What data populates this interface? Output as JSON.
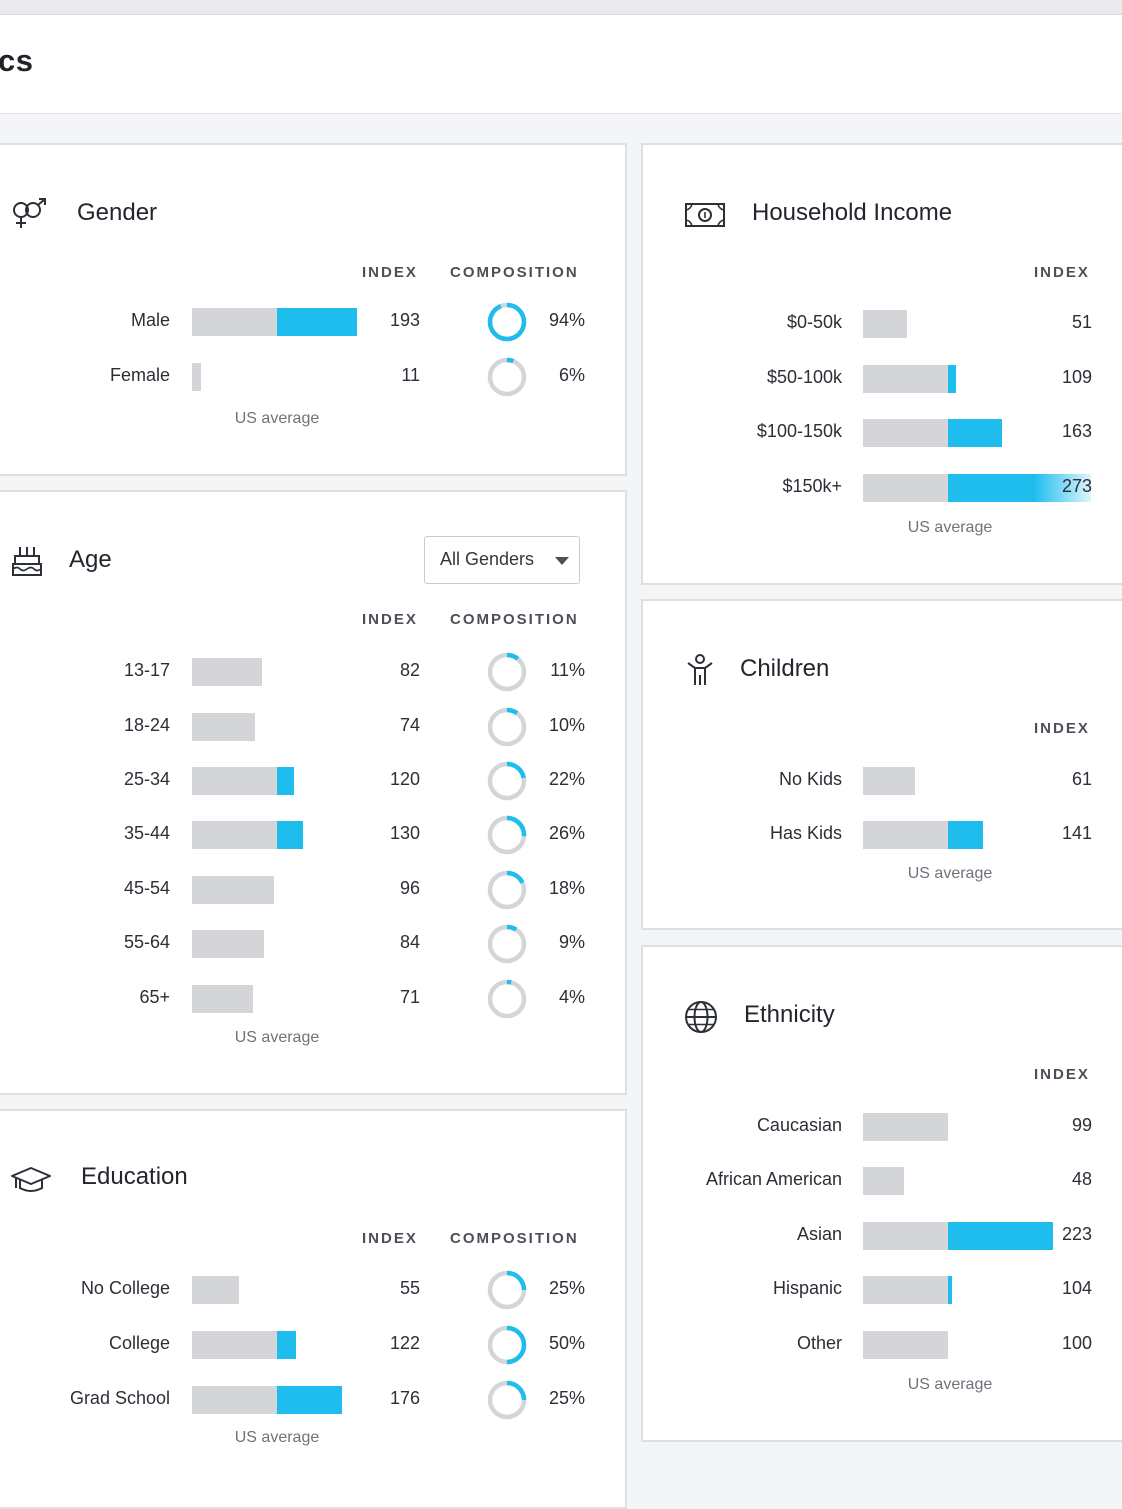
{
  "page": {
    "title": "cs"
  },
  "gender": {
    "title": "Gender",
    "index_header": "INDEX",
    "composition_header": "COMPOSITION",
    "us_average": "US average",
    "rows": [
      {
        "label": "Male",
        "index": "193",
        "composition": "94%",
        "index_value": 193,
        "composition_value": 94
      },
      {
        "label": "Female",
        "index": "11",
        "composition": "6%",
        "index_value": 11,
        "composition_value": 6
      }
    ]
  },
  "age": {
    "title": "Age",
    "filter": {
      "selected": "All Genders"
    },
    "index_header": "INDEX",
    "composition_header": "COMPOSITION",
    "us_average": "US average",
    "rows": [
      {
        "label": "13-17",
        "index": "82",
        "composition": "11%",
        "index_value": 82,
        "composition_value": 11
      },
      {
        "label": "18-24",
        "index": "74",
        "composition": "10%",
        "index_value": 74,
        "composition_value": 10
      },
      {
        "label": "25-34",
        "index": "120",
        "composition": "22%",
        "index_value": 120,
        "composition_value": 22
      },
      {
        "label": "35-44",
        "index": "130",
        "composition": "26%",
        "index_value": 130,
        "composition_value": 26
      },
      {
        "label": "45-54",
        "index": "96",
        "composition": "18%",
        "index_value": 96,
        "composition_value": 18
      },
      {
        "label": "55-64",
        "index": "84",
        "composition": "9%",
        "index_value": 84,
        "composition_value": 9
      },
      {
        "label": "65+",
        "index": "71",
        "composition": "4%",
        "index_value": 71,
        "composition_value": 4
      }
    ]
  },
  "education": {
    "title": "Education",
    "index_header": "INDEX",
    "composition_header": "COMPOSITION",
    "us_average": "US average",
    "rows": [
      {
        "label": "No College",
        "index": "55",
        "composition": "25%",
        "index_value": 55,
        "composition_value": 25
      },
      {
        "label": "College",
        "index": "122",
        "composition": "50%",
        "index_value": 122,
        "composition_value": 50
      },
      {
        "label": "Grad School",
        "index": "176",
        "composition": "25%",
        "index_value": 176,
        "composition_value": 25
      }
    ]
  },
  "income": {
    "title": "Household Income",
    "index_header": "INDEX",
    "us_average": "US average",
    "rows": [
      {
        "label": "$0-50k",
        "index": "51",
        "index_value": 51
      },
      {
        "label": "$50-100k",
        "index": "109",
        "index_value": 109
      },
      {
        "label": "$100-150k",
        "index": "163",
        "index_value": 163
      },
      {
        "label": "$150k+",
        "index": "273",
        "index_value": 273
      }
    ]
  },
  "children": {
    "title": "Children",
    "index_header": "INDEX",
    "us_average": "US average",
    "rows": [
      {
        "label": "No Kids",
        "index": "61",
        "index_value": 61
      },
      {
        "label": "Has Kids",
        "index": "141",
        "index_value": 141
      }
    ]
  },
  "ethnicity": {
    "title": "Ethnicity",
    "index_header": "INDEX",
    "us_average": "US average",
    "rows": [
      {
        "label": "Caucasian",
        "index": "99",
        "index_value": 99
      },
      {
        "label": "African American",
        "index": "48",
        "index_value": 48
      },
      {
        "label": "Asian",
        "index": "223",
        "index_value": 223
      },
      {
        "label": "Hispanic",
        "index": "104",
        "index_value": 104
      },
      {
        "label": "Other",
        "index": "100",
        "index_value": 100
      }
    ]
  },
  "colors": {
    "accent": "#1ebdee",
    "bar_gray": "#d3d5d8",
    "ring_gray": "#d3d5d8"
  },
  "icons": {
    "gender": "gender-symbols-icon",
    "age": "birthday-cake-icon",
    "education": "graduation-cap-icon",
    "income": "money-bill-icon",
    "children": "child-icon",
    "ethnicity": "globe-icon",
    "dropdown": "chevron-down-icon"
  }
}
